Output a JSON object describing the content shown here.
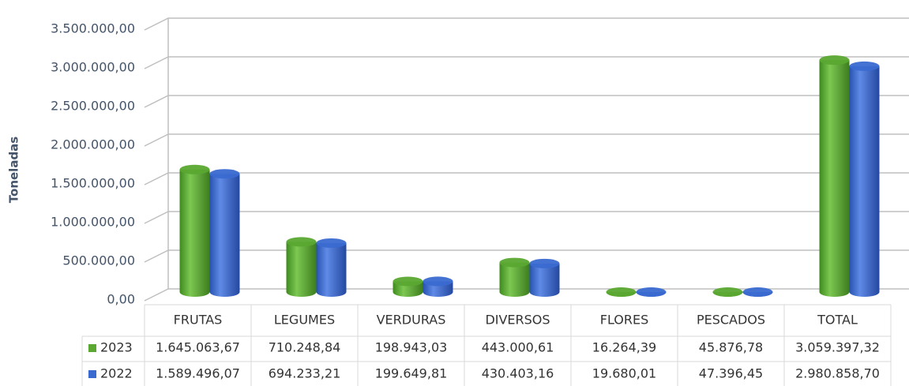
{
  "chart_data": {
    "type": "bar3d",
    "y_axis_label": "Toneladas",
    "categories": [
      "FRUTAS",
      "LEGUMES",
      "VERDURAS",
      "DIVERSOS",
      "FLORES",
      "PESCADOS",
      "TOTAL"
    ],
    "series": [
      {
        "name": "2023",
        "color": "#5aa832",
        "values": [
          1645063.67,
          710248.84,
          198943.03,
          443000.61,
          16264.39,
          45876.78,
          3059397.32
        ],
        "value_labels": [
          "1.645.063,67",
          "710.248,84",
          "198.943,03",
          "443.000,61",
          "16.264,39",
          "45.876,78",
          "3.059.397,32"
        ]
      },
      {
        "name": "2022",
        "color": "#3a6ad0",
        "values": [
          1589496.07,
          694233.21,
          199649.81,
          430403.16,
          19680.01,
          47396.45,
          2980858.7
        ],
        "value_labels": [
          "1.589.496,07",
          "694.233,21",
          "199.649,81",
          "430.403,16",
          "19.680,01",
          "47.396,45",
          "2.980.858,70"
        ]
      }
    ],
    "ylim": [
      0,
      3500000
    ],
    "yticks": [
      {
        "value": 0,
        "label": "0,00"
      },
      {
        "value": 500000,
        "label": "500.000,00"
      },
      {
        "value": 1000000,
        "label": "1.000.000,00"
      },
      {
        "value": 1500000,
        "label": "1.500.000,00"
      },
      {
        "value": 2000000,
        "label": "2.000.000,00"
      },
      {
        "value": 2500000,
        "label": "2.500.000,00"
      },
      {
        "value": 3000000,
        "label": "3.000.000,00"
      },
      {
        "value": 3500000,
        "label": "3.500.000,00"
      }
    ],
    "grid": true
  }
}
